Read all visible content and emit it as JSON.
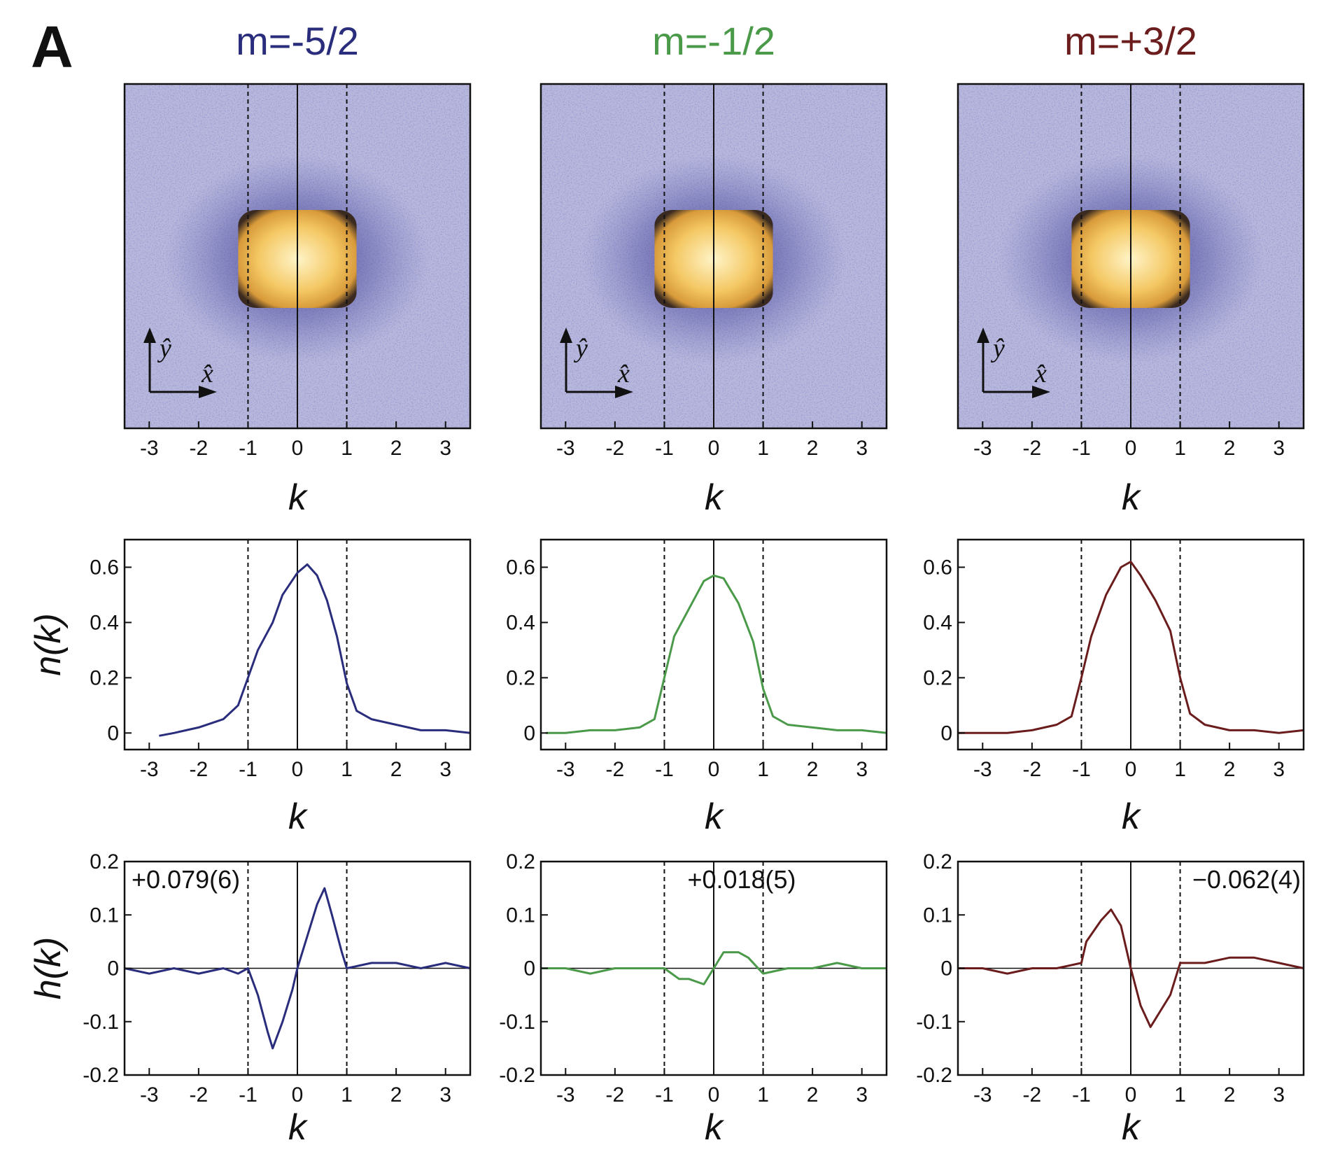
{
  "panel_letter": "A",
  "colors": {
    "m_neg52": "#2a2d7c",
    "m_neg12": "#4a9a4a",
    "m_pos32": "#6b1c1c",
    "image_bg": "#b9b9dd",
    "image_dot": "#5a5aa8",
    "cloud": "#f2c060"
  },
  "chart_data": [
    {
      "type": "heatmap",
      "title": "m=-5/2",
      "xlabel": "k",
      "xlim": [
        -3.5,
        3.5
      ],
      "xticks": [
        -3,
        -2,
        -1,
        0,
        1,
        2,
        3
      ],
      "axis_arrows": {
        "x": "x̂",
        "y": "ŷ"
      },
      "dashed_lines_x": [
        -1,
        1
      ],
      "solid_line_x": 0
    },
    {
      "type": "heatmap",
      "title": "m=-1/2",
      "xlabel": "k",
      "xlim": [
        -3.5,
        3.5
      ],
      "xticks": [
        -3,
        -2,
        -1,
        0,
        1,
        2,
        3
      ],
      "axis_arrows": {
        "x": "x̂",
        "y": "ŷ"
      },
      "dashed_lines_x": [
        -1,
        1
      ],
      "solid_line_x": 0
    },
    {
      "type": "heatmap",
      "title": "m=+3/2",
      "xlabel": "k",
      "xlim": [
        -3.5,
        3.5
      ],
      "xticks": [
        -3,
        -2,
        -1,
        0,
        1,
        2,
        3
      ],
      "axis_arrows": {
        "x": "x̂",
        "y": "ŷ"
      },
      "dashed_lines_x": [
        -1,
        1
      ],
      "solid_line_x": 0
    },
    {
      "type": "line",
      "series_name": "m=-5/2",
      "xlabel": "k",
      "ylabel": "n(k)",
      "xlim": [
        -3.5,
        3.5
      ],
      "ylim": [
        -0.06,
        0.7
      ],
      "xticks": [
        -3,
        -2,
        -1,
        0,
        1,
        2,
        3
      ],
      "yticks": [
        0,
        0.2,
        0.4,
        0.6
      ],
      "ytick_labels": [
        "0",
        "0.2",
        "0.4",
        "0.6"
      ],
      "x": [
        -2.8,
        -2.5,
        -2.0,
        -1.5,
        -1.2,
        -1.0,
        -0.8,
        -0.5,
        -0.3,
        0.0,
        0.2,
        0.4,
        0.6,
        0.8,
        1.0,
        1.2,
        1.5,
        2.0,
        2.5,
        3.0,
        3.5
      ],
      "values": [
        -0.01,
        0.0,
        0.02,
        0.05,
        0.1,
        0.2,
        0.3,
        0.4,
        0.5,
        0.58,
        0.61,
        0.57,
        0.48,
        0.35,
        0.18,
        0.08,
        0.05,
        0.03,
        0.01,
        0.01,
        0.0
      ]
    },
    {
      "type": "line",
      "series_name": "m=-1/2",
      "xlabel": "k",
      "ylabel": "n(k)",
      "xlim": [
        -3.5,
        3.5
      ],
      "ylim": [
        -0.06,
        0.7
      ],
      "xticks": [
        -3,
        -2,
        -1,
        0,
        1,
        2,
        3
      ],
      "yticks": [
        0,
        0.2,
        0.4,
        0.6
      ],
      "ytick_labels": [
        "0",
        "0.2",
        "0.4",
        "0.6"
      ],
      "x": [
        -3.4,
        -3.0,
        -2.5,
        -2.0,
        -1.5,
        -1.2,
        -1.0,
        -0.8,
        -0.5,
        -0.2,
        0.0,
        0.2,
        0.5,
        0.8,
        1.0,
        1.2,
        1.5,
        2.0,
        2.5,
        3.0,
        3.5
      ],
      "values": [
        0.0,
        0.0,
        0.01,
        0.01,
        0.02,
        0.05,
        0.2,
        0.35,
        0.45,
        0.55,
        0.57,
        0.56,
        0.47,
        0.33,
        0.16,
        0.06,
        0.03,
        0.02,
        0.01,
        0.01,
        0.0
      ]
    },
    {
      "type": "line",
      "series_name": "m=+3/2",
      "xlabel": "k",
      "ylabel": "n(k)",
      "xlim": [
        -3.5,
        3.5
      ],
      "ylim": [
        -0.06,
        0.7
      ],
      "xticks": [
        -3,
        -2,
        -1,
        0,
        1,
        2,
        3
      ],
      "yticks": [
        0,
        0.2,
        0.4,
        0.6
      ],
      "ytick_labels": [
        "0",
        "0.2",
        "0.4",
        "0.6"
      ],
      "x": [
        -3.5,
        -3.0,
        -2.5,
        -2.0,
        -1.5,
        -1.2,
        -1.0,
        -0.8,
        -0.5,
        -0.2,
        0.0,
        0.2,
        0.5,
        0.8,
        1.0,
        1.2,
        1.5,
        2.0,
        2.5,
        3.0,
        3.5
      ],
      "values": [
        0.0,
        0.0,
        0.0,
        0.01,
        0.03,
        0.06,
        0.2,
        0.35,
        0.5,
        0.6,
        0.62,
        0.57,
        0.48,
        0.37,
        0.2,
        0.07,
        0.03,
        0.01,
        0.01,
        0.0,
        0.01
      ]
    },
    {
      "type": "line",
      "series_name": "m=-5/2",
      "xlabel": "k",
      "ylabel": "h(k)",
      "xlim": [
        -3.5,
        3.5
      ],
      "ylim": [
        -0.2,
        0.2
      ],
      "xticks": [
        -3,
        -2,
        -1,
        0,
        1,
        2,
        3
      ],
      "yticks": [
        -0.2,
        -0.1,
        0,
        0.1,
        0.2
      ],
      "ytick_labels": [
        "-0.2",
        "-0.1",
        "0",
        "0.1",
        "0.2"
      ],
      "annotation": "+0.079(6)",
      "annotation_pos": "top-left",
      "x": [
        -3.5,
        -3.0,
        -2.5,
        -2.0,
        -1.5,
        -1.2,
        -1.0,
        -0.8,
        -0.6,
        -0.5,
        -0.3,
        -0.1,
        0.0,
        0.2,
        0.4,
        0.55,
        0.7,
        0.9,
        1.0,
        1.5,
        2.0,
        2.5,
        3.0,
        3.5
      ],
      "values": [
        0.0,
        -0.01,
        0.0,
        -0.01,
        0.0,
        -0.01,
        0.0,
        -0.05,
        -0.12,
        -0.15,
        -0.1,
        -0.04,
        0.0,
        0.06,
        0.12,
        0.15,
        0.1,
        0.03,
        0.0,
        0.01,
        0.01,
        0.0,
        0.01,
        0.0
      ]
    },
    {
      "type": "line",
      "series_name": "m=-1/2",
      "xlabel": "k",
      "ylabel": "h(k)",
      "xlim": [
        -3.5,
        3.5
      ],
      "ylim": [
        -0.2,
        0.2
      ],
      "xticks": [
        -3,
        -2,
        -1,
        0,
        1,
        2,
        3
      ],
      "yticks": [
        -0.2,
        -0.1,
        0,
        0.1,
        0.2
      ],
      "ytick_labels": [
        "-0.2",
        "-0.1",
        "0",
        "0.1",
        "0.2"
      ],
      "annotation": "+0.018(5)",
      "annotation_pos": "top-center",
      "x": [
        -3.5,
        -3.0,
        -2.5,
        -2.0,
        -1.5,
        -1.0,
        -0.7,
        -0.5,
        -0.2,
        0.0,
        0.2,
        0.5,
        0.7,
        1.0,
        1.5,
        2.0,
        2.5,
        3.0,
        3.5
      ],
      "values": [
        0.0,
        0.0,
        -0.01,
        0.0,
        0.0,
        0.0,
        -0.02,
        -0.02,
        -0.03,
        0.0,
        0.03,
        0.03,
        0.02,
        -0.01,
        0.0,
        0.0,
        0.01,
        0.0,
        0.0
      ]
    },
    {
      "type": "line",
      "series_name": "m=+3/2",
      "xlabel": "k",
      "ylabel": "h(k)",
      "xlim": [
        -3.5,
        3.5
      ],
      "ylim": [
        -0.2,
        0.2
      ],
      "xticks": [
        -3,
        -2,
        -1,
        0,
        1,
        2,
        3
      ],
      "yticks": [
        -0.2,
        -0.1,
        0,
        0.1,
        0.2
      ],
      "ytick_labels": [
        "-0.2",
        "-0.1",
        "0",
        "0.1",
        "0.2"
      ],
      "annotation": "−0.062(4)",
      "annotation_pos": "top-right",
      "x": [
        -3.5,
        -3.0,
        -2.5,
        -2.0,
        -1.5,
        -1.0,
        -0.9,
        -0.6,
        -0.4,
        -0.2,
        0.0,
        0.2,
        0.4,
        0.6,
        0.8,
        1.0,
        1.5,
        2.0,
        2.5,
        3.0,
        3.5
      ],
      "values": [
        0.0,
        0.0,
        -0.01,
        0.0,
        0.0,
        0.01,
        0.05,
        0.09,
        0.11,
        0.08,
        0.0,
        -0.07,
        -0.11,
        -0.08,
        -0.05,
        0.01,
        0.01,
        0.02,
        0.02,
        0.01,
        0.0
      ]
    }
  ]
}
